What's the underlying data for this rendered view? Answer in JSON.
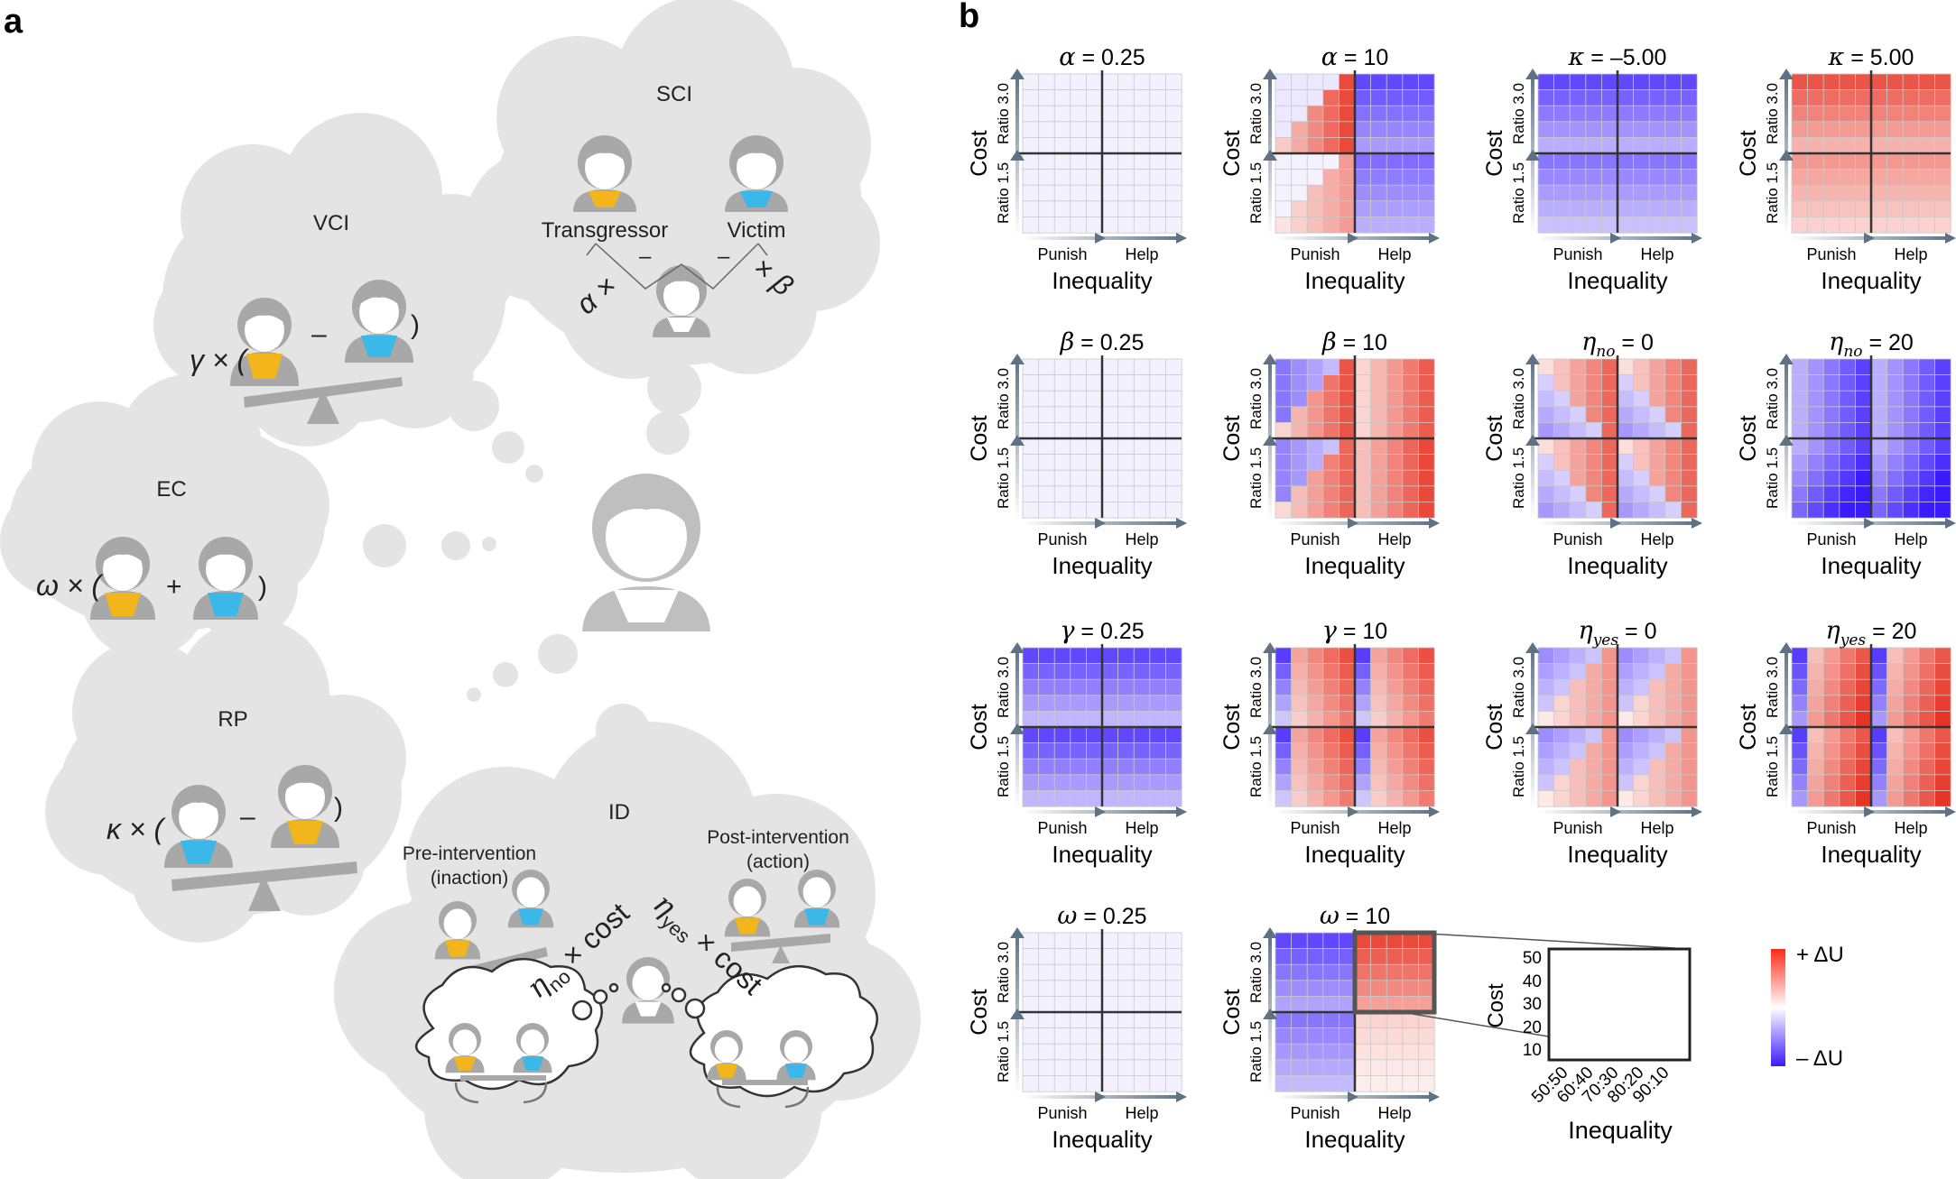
{
  "panel_a": {
    "letter": "a",
    "sci": {
      "label": "SCI",
      "transgressor": "Transgressor",
      "victim": "Victim",
      "alpha_times": "α ×",
      "times_beta": "× β",
      "minus_left": "–",
      "minus_right": "–"
    },
    "vci": {
      "label": "VCI",
      "prefix": "γ × (",
      "minus": "–",
      "suffix": ")"
    },
    "ec": {
      "label": "EC",
      "prefix": "ω × (",
      "plus": "+",
      "suffix": ")"
    },
    "rp": {
      "label": "RP",
      "prefix": "κ × (",
      "minus": "–",
      "suffix": ")"
    },
    "id": {
      "label": "ID",
      "pre_line1": "Pre-intervention",
      "pre_line2": "(inaction)",
      "post_line1": "Post-intervention",
      "post_line2": "(action)",
      "eta_no": "η",
      "eta_no_sub": "no",
      "eta_no_tail": " × cost",
      "eta_yes": "η",
      "eta_yes_sub": "yes",
      "eta_yes_tail": " × cost"
    }
  },
  "panel_b": {
    "letter": "b",
    "axis_text": {
      "cost": "Cost",
      "ratio_top": "Ratio 3.0",
      "ratio_bottom": "Ratio 1.5",
      "punish": "Punish",
      "help": "Help",
      "inequality": "Inequality"
    },
    "legend": {
      "plus": "+ ΔU",
      "minus": "– ΔU",
      "color_max": "#ff2a1a",
      "color_mid": "#ffffff",
      "color_min": "#3a1aff"
    },
    "inset": {
      "ylabel": "Cost",
      "xlabel": "Inequality",
      "yticks": [
        "50",
        "40",
        "30",
        "20",
        "10"
      ],
      "xticks": [
        "50:50",
        "60:40",
        "70:30",
        "80:20",
        "90:10"
      ]
    }
  },
  "chart_data": [
    {
      "type": "heatmap",
      "title_sym": "α",
      "title_sub": "",
      "title_value": " = 0.25",
      "pattern": "faint"
    },
    {
      "type": "heatmap",
      "title_sym": "α",
      "title_sub": "",
      "title_value": " = 10",
      "pattern": "alpha10"
    },
    {
      "type": "heatmap",
      "title_sym": "κ",
      "title_sub": "",
      "title_value": " = –5.00",
      "pattern": "kneg"
    },
    {
      "type": "heatmap",
      "title_sym": "κ",
      "title_sub": "",
      "title_value": " = 5.00",
      "pattern": "kpos"
    },
    {
      "type": "heatmap",
      "title_sym": "β",
      "title_sub": "",
      "title_value": " = 0.25",
      "pattern": "faint"
    },
    {
      "type": "heatmap",
      "title_sym": "β",
      "title_sub": "",
      "title_value": " = 10",
      "pattern": "beta10"
    },
    {
      "type": "heatmap",
      "title_sym": "η",
      "title_sub": "no",
      "title_value": " = 0",
      "pattern": "etano0"
    },
    {
      "type": "heatmap",
      "title_sym": "η",
      "title_sub": "no",
      "title_value": " = 20",
      "pattern": "etano20"
    },
    {
      "type": "heatmap",
      "title_sym": "γ",
      "title_sub": "",
      "title_value": " = 0.25",
      "pattern": "gamma025"
    },
    {
      "type": "heatmap",
      "title_sym": "γ",
      "title_sub": "",
      "title_value": " = 10",
      "pattern": "gamma10"
    },
    {
      "type": "heatmap",
      "title_sym": "η",
      "title_sub": "yes",
      "title_value": " = 0",
      "pattern": "etayes0"
    },
    {
      "type": "heatmap",
      "title_sym": "η",
      "title_sub": "yes",
      "title_value": " = 20",
      "pattern": "etayes20"
    },
    {
      "type": "heatmap",
      "title_sym": "ω",
      "title_sub": "",
      "title_value": " = 0.25",
      "pattern": "faint"
    },
    {
      "type": "heatmap",
      "title_sym": "ω",
      "title_sub": "",
      "title_value": " = 10",
      "pattern": "omega10"
    }
  ]
}
